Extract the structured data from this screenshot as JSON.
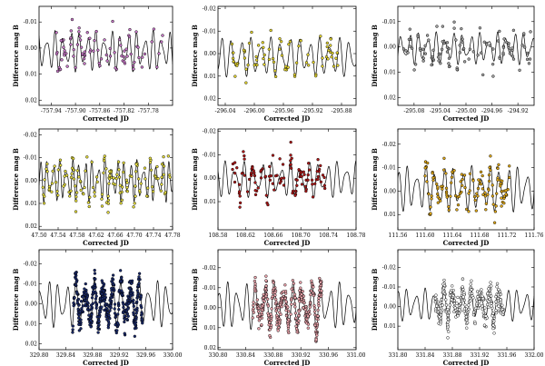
{
  "chart_data": [
    {
      "type": "scatter",
      "panel": "row1-col1",
      "xlabel": "Corrected JD",
      "ylabel": "Difference mag B",
      "xlim": [
        -757.96,
        -757.74
      ],
      "ylim": [
        0.022,
        -0.016
      ],
      "xticks": [
        -757.94,
        -757.9,
        -757.86,
        -757.82,
        -757.78
      ],
      "xtick_labels": [
        "-757.94",
        "-757.90",
        "-757.86",
        "-757.82",
        "-757.78"
      ],
      "yticks": [
        -0.01,
        0.0,
        0.01,
        0.02
      ],
      "ytick_labels": [
        "-0.01",
        "0.00",
        "0.01",
        "0.02"
      ],
      "marker_color": "#c878c8",
      "series": [
        {
          "name": "model",
          "kind": "line",
          "x_range": [
            -757.96,
            -757.74
          ],
          "mean": 0.0012,
          "amplitude": 0.0055,
          "period": 0.0135,
          "amp2": 0.0025,
          "period2": 0.0095
        },
        {
          "name": "observations",
          "kind": "points",
          "x_range": [
            -757.935,
            -757.755
          ],
          "count": 90,
          "scatter": 0.0022,
          "seed": 11
        }
      ]
    },
    {
      "type": "scatter",
      "panel": "row1-col2",
      "xlabel": "Corrected JD",
      "ylabel": "Difference mag B",
      "xlim": [
        -296.05,
        -295.86
      ],
      "ylim": [
        0.023,
        -0.021
      ],
      "xticks": [
        -296.04,
        -296.0,
        -295.96,
        -295.92,
        -295.88
      ],
      "xtick_labels": [
        "-296.04",
        "-296.00",
        "-295.96",
        "-295.92",
        "-295.88"
      ],
      "yticks": [
        -0.02,
        -0.01,
        0.0,
        0.01,
        0.02
      ],
      "ytick_labels": [
        "-0.02",
        "-0.01",
        "0.00",
        "0.01",
        "0.02"
      ],
      "marker_color": "#e8d830",
      "series": [
        {
          "name": "model",
          "kind": "line",
          "x_range": [
            -296.05,
            -295.86
          ],
          "mean": 0.0015,
          "amplitude": 0.0065,
          "period": 0.0135,
          "amp2": 0.0025,
          "period2": 0.0095
        },
        {
          "name": "observations",
          "kind": "points",
          "x_range": [
            -296.035,
            -295.885
          ],
          "count": 80,
          "scatter": 0.0023,
          "seed": 23
        }
      ]
    },
    {
      "type": "scatter",
      "panel": "row1-col3",
      "xlabel": "Corrected JD",
      "ylabel": "Difference mag B",
      "xlim": [
        -295.105,
        -294.895
      ],
      "ylim": [
        0.023,
        -0.016
      ],
      "xticks": [
        -295.08,
        -295.04,
        -295.0,
        -294.96,
        -294.92
      ],
      "xtick_labels": [
        "-295.08",
        "-295.04",
        "-295.00",
        "-294.96",
        "-294.92"
      ],
      "yticks": [
        -0.01,
        0.0,
        0.01,
        0.02
      ],
      "ytick_labels": [
        "-0.01",
        "0.00",
        "0.01",
        "0.02"
      ],
      "marker_color": "#a0a0a0",
      "series": [
        {
          "name": "model",
          "kind": "line",
          "x_range": [
            -295.105,
            -294.895
          ],
          "mean": 0.0005,
          "amplitude": 0.0045,
          "period": 0.0135,
          "amp2": 0.002,
          "period2": 0.0095
        },
        {
          "name": "observations",
          "kind": "points",
          "x_range": [
            -295.1,
            -294.9
          ],
          "count": 105,
          "scatter": 0.0028,
          "seed": 37
        }
      ]
    },
    {
      "type": "scatter",
      "panel": "row2-col1",
      "xlabel": "Corrected JD",
      "ylabel": "Difference mag B",
      "xlim": [
        47.5,
        47.78
      ],
      "ylim": [
        0.0215,
        -0.0225
      ],
      "xticks": [
        47.5,
        47.54,
        47.58,
        47.62,
        47.66,
        47.7,
        47.74,
        47.78
      ],
      "xtick_labels": [
        "47.50",
        "47.54",
        "47.58",
        "47.62",
        "47.66",
        "47.70",
        "47.74",
        "47.78"
      ],
      "yticks": [
        -0.02,
        -0.01,
        0.0,
        0.01,
        0.02
      ],
      "ytick_labels": [
        "-0.02",
        "-0.01",
        "0.00",
        "0.01",
        "0.02"
      ],
      "marker_color": "#e8e040",
      "series": [
        {
          "name": "model",
          "kind": "line",
          "x_range": [
            47.5,
            47.78
          ],
          "mean": 0.0,
          "amplitude": 0.0065,
          "period": 0.0135,
          "amp2": 0.003,
          "period2": 0.0095
        },
        {
          "name": "observations",
          "kind": "points",
          "x_range": [
            47.505,
            47.775
          ],
          "count": 150,
          "scatter": 0.0025,
          "seed": 41
        }
      ]
    },
    {
      "type": "scatter",
      "panel": "row2-col2",
      "xlabel": "Corrected JD",
      "ylabel": "Difference mag B",
      "xlim": [
        108.58,
        108.78
      ],
      "ylim": [
        0.022,
        -0.021
      ],
      "xticks": [
        108.58,
        108.62,
        108.66,
        108.7,
        108.74,
        108.78
      ],
      "xtick_labels": [
        "108.58",
        "108.62",
        "108.66",
        "108.70",
        "108.74",
        "108.78"
      ],
      "yticks": [
        -0.02,
        -0.01,
        0.0,
        0.01
      ],
      "ytick_labels": [
        "-0.02",
        "-0.01",
        "0.00",
        "0.01"
      ],
      "marker_color": "#b01818",
      "series": [
        {
          "name": "model",
          "kind": "line",
          "x_range": [
            108.58,
            108.78
          ],
          "mean": 0.0005,
          "amplitude": 0.0055,
          "period": 0.0135,
          "amp2": 0.0025,
          "period2": 0.0095
        },
        {
          "name": "observations",
          "kind": "points",
          "x_range": [
            108.6,
            108.735
          ],
          "count": 115,
          "scatter": 0.003,
          "seed": 53
        }
      ]
    },
    {
      "type": "scatter",
      "panel": "row2-col3",
      "xlabel": "Corrected JD",
      "ylabel": "Difference mag B",
      "xlim": [
        111.56,
        111.76
      ],
      "ylim": [
        0.0165,
        -0.0265
      ],
      "xticks": [
        111.56,
        111.6,
        111.64,
        111.68,
        111.72,
        111.76
      ],
      "xtick_labels": [
        "111.56",
        "111.60",
        "111.64",
        "111.68",
        "111.72",
        "111.76"
      ],
      "yticks": [
        -0.02,
        -0.01,
        0.0,
        0.01
      ],
      "ytick_labels": [
        "-0.02",
        "-0.01",
        "0.00",
        "0.01"
      ],
      "marker_color": "#e0a818",
      "series": [
        {
          "name": "model",
          "kind": "line",
          "x_range": [
            111.56,
            111.76
          ],
          "mean": -0.001,
          "amplitude": 0.007,
          "period": 0.0135,
          "amp2": 0.003,
          "period2": 0.0095
        },
        {
          "name": "observations",
          "kind": "points",
          "x_range": [
            111.6,
            111.725
          ],
          "count": 130,
          "scatter": 0.0025,
          "seed": 67
        }
      ]
    },
    {
      "type": "scatter",
      "panel": "row3-col1",
      "xlabel": "Corrected JD",
      "ylabel": "Difference mag B",
      "xlim": [
        329.8,
        330.0
      ],
      "ylim": [
        0.023,
        -0.027
      ],
      "xticks": [
        329.8,
        329.84,
        329.88,
        329.92,
        329.96,
        330.0
      ],
      "xtick_labels": [
        "329.80",
        "329.84",
        "329.88",
        "329.92",
        "329.96",
        "330.00"
      ],
      "yticks": [
        -0.02,
        -0.01,
        0.0,
        0.01,
        0.02
      ],
      "ytick_labels": [
        "-0.02",
        "-0.01",
        "0.00",
        "0.01",
        "0.02"
      ],
      "marker_color": "#1a2a6a",
      "series": [
        {
          "name": "model",
          "kind": "line",
          "x_range": [
            329.8,
            330.0
          ],
          "mean": 0.0,
          "amplitude": 0.0085,
          "period": 0.0135,
          "amp2": 0.0035,
          "period2": 0.0095
        },
        {
          "name": "observations",
          "kind": "points",
          "x_range": [
            329.85,
            329.955
          ],
          "count": 420,
          "scatter": 0.003,
          "seed": 79
        }
      ]
    },
    {
      "type": "scatter",
      "panel": "row3-col2",
      "xlabel": "Corrected JD",
      "ylabel": "Difference mag B",
      "xlim": [
        330.8,
        331.0
      ],
      "ylim": [
        0.021,
        -0.029
      ],
      "xticks": [
        330.8,
        330.84,
        330.88,
        330.92,
        330.96,
        331.0
      ],
      "xtick_labels": [
        "330.80",
        "330.84",
        "330.88",
        "330.92",
        "330.96",
        "331.00"
      ],
      "yticks": [
        -0.02,
        -0.01,
        0.0,
        0.01,
        0.02
      ],
      "ytick_labels": [
        "-0.02",
        "-0.01",
        "0.00",
        "0.01",
        "0.02"
      ],
      "marker_color": "#f0a8b0",
      "series": [
        {
          "name": "model",
          "kind": "line",
          "x_range": [
            330.8,
            331.0
          ],
          "mean": -0.001,
          "amplitude": 0.0085,
          "period": 0.0135,
          "amp2": 0.0035,
          "period2": 0.0095
        },
        {
          "name": "observations",
          "kind": "points",
          "x_range": [
            330.85,
            330.95
          ],
          "count": 380,
          "scatter": 0.003,
          "seed": 97
        }
      ]
    },
    {
      "type": "scatter",
      "panel": "row3-col3",
      "xlabel": "Corrected JD",
      "ylabel": "Difference mag B",
      "xlim": [
        331.8,
        332.0
      ],
      "ylim": [
        0.022,
        -0.029
      ],
      "xticks": [
        331.8,
        331.84,
        331.88,
        331.92,
        331.96,
        332.0
      ],
      "xtick_labels": [
        "331.80",
        "331.84",
        "331.88",
        "331.92",
        "331.96",
        "332.00"
      ],
      "yticks": [
        -0.02,
        -0.01,
        0.0,
        0.01
      ],
      "ytick_labels": [
        "-0.02",
        "-0.01",
        "0.00",
        "0.01"
      ],
      "marker_color": "#ffffff",
      "series": [
        {
          "name": "model",
          "kind": "line",
          "x_range": [
            331.8,
            332.0
          ],
          "mean": -0.001,
          "amplitude": 0.006,
          "period": 0.0135,
          "amp2": 0.0025,
          "period2": 0.0095
        },
        {
          "name": "observations",
          "kind": "points",
          "x_range": [
            331.855,
            331.955
          ],
          "count": 330,
          "scatter": 0.003,
          "seed": 113
        }
      ]
    }
  ]
}
